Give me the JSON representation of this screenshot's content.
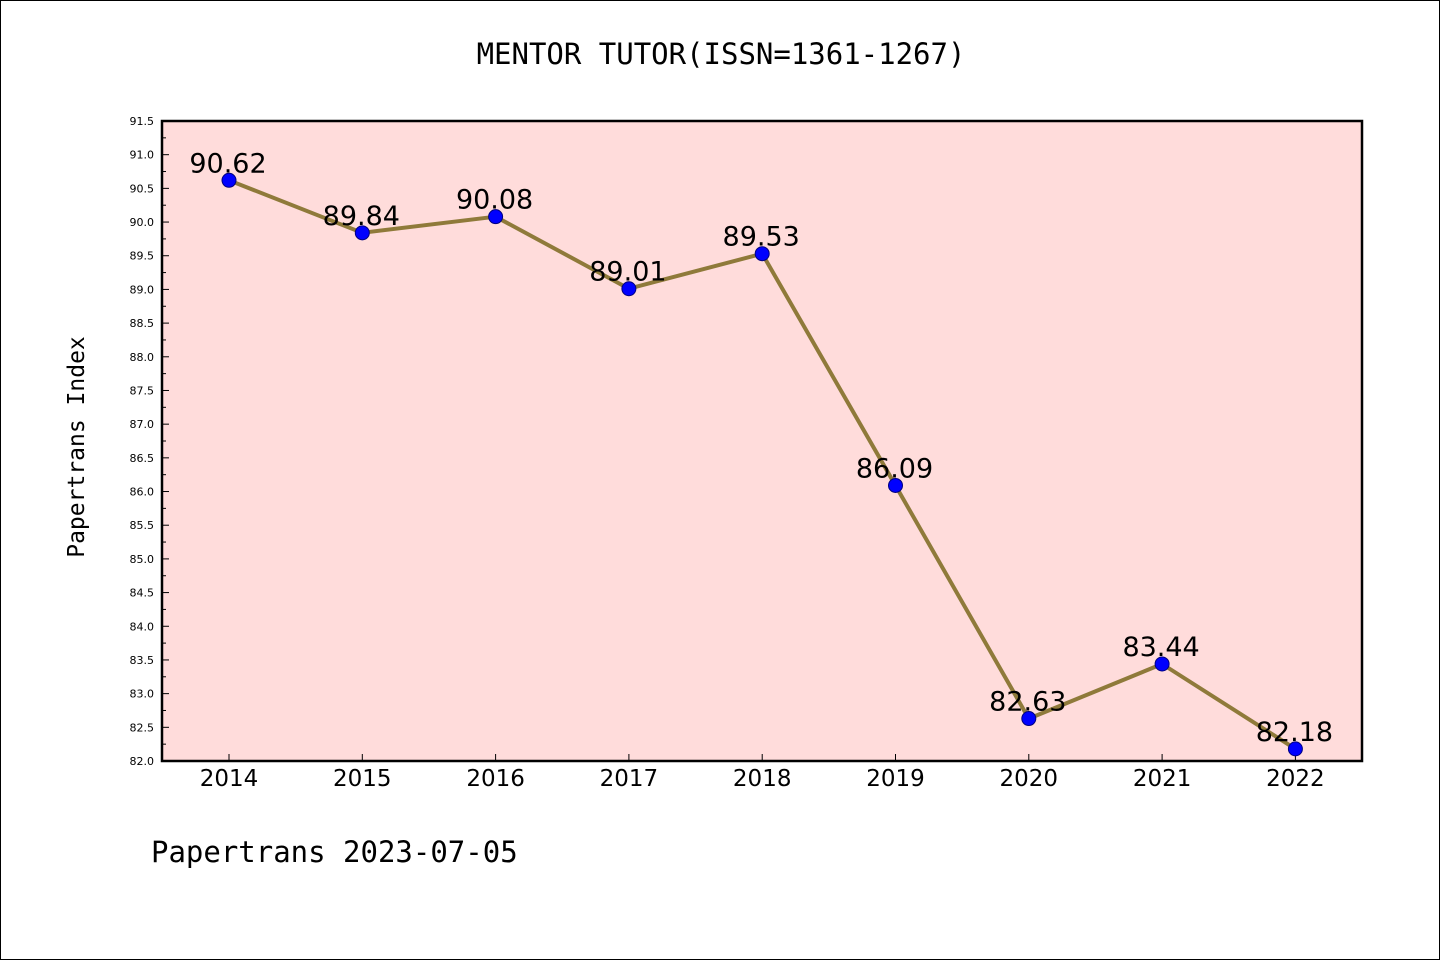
{
  "title": "MENTOR TUTOR(ISSN=1361-1267)",
  "footer": "Papertrans 2023-07-05",
  "colors": {
    "plot_background": "#ffdcdb",
    "line": "#8f7a3a",
    "marker": "#0000ff",
    "axis": "#000000"
  },
  "chart_data": {
    "type": "line",
    "title": "MENTOR TUTOR(ISSN=1361-1267)",
    "xlabel": "",
    "ylabel": "Papertrans Index",
    "categories": [
      "2014",
      "2015",
      "2016",
      "2017",
      "2018",
      "2019",
      "2020",
      "2021",
      "2022"
    ],
    "values": [
      90.62,
      89.84,
      90.08,
      89.01,
      89.53,
      86.09,
      82.63,
      83.44,
      82.18
    ],
    "data_labels": [
      "90.62",
      "89.84",
      "90.08",
      "89.01",
      "89.53",
      "86.09",
      "82.63",
      "83.44",
      "82.18"
    ],
    "ylim": [
      82.0,
      91.5
    ],
    "yticks": [
      "82.0",
      "82.5",
      "83.0",
      "83.5",
      "84.0",
      "84.5",
      "85.0",
      "85.5",
      "86.0",
      "86.5",
      "87.0",
      "87.5",
      "88.0",
      "88.5",
      "89.0",
      "89.5",
      "90.0",
      "90.5",
      "91.0",
      "91.5"
    ],
    "grid": false,
    "legend": "none"
  }
}
